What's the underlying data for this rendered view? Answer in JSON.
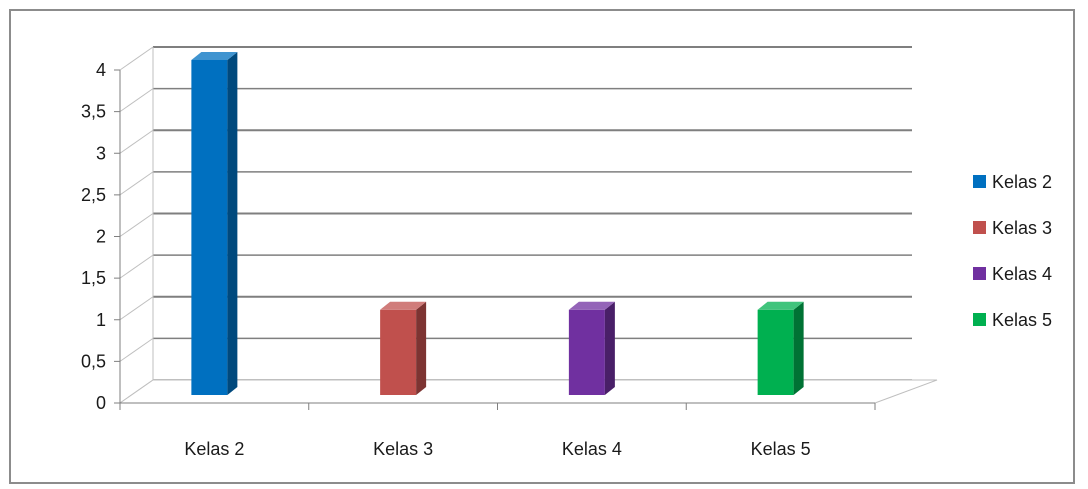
{
  "chart_data": {
    "type": "bar",
    "categories": [
      "Kelas 2",
      "Kelas 3",
      "Kelas 4",
      "Kelas 5"
    ],
    "values": [
      4,
      1,
      1,
      1
    ],
    "colors": [
      "#0070C0",
      "#C0504D",
      "#7030A0",
      "#00B050"
    ],
    "yticks": [
      "0",
      "0,5",
      "1",
      "1,5",
      "2",
      "2,5",
      "3",
      "3,5",
      "4"
    ],
    "ylim": [
      0,
      4
    ],
    "grid": true,
    "legend": {
      "placement": "right",
      "entries": [
        "Kelas 2",
        "Kelas 3",
        "Kelas 4",
        "Kelas 5"
      ]
    },
    "title": "",
    "xlabel": "",
    "ylabel": ""
  }
}
